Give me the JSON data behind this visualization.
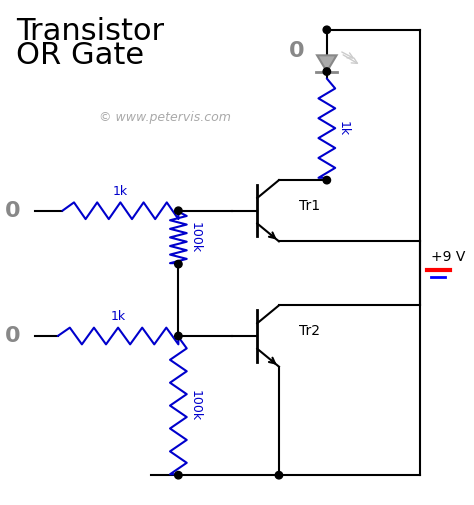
{
  "title_line1": "Transistor",
  "title_line2": "OR Gate",
  "title_color": "#000000",
  "title_fontsize": 22,
  "bg_color": "#ffffff",
  "wire_color": "#000000",
  "resistor_color": "#0000cc",
  "label_color": "#888888",
  "watermark": "© www.petervis.com",
  "watermark_color": "#aaaaaa",
  "watermark_fontsize": 9,
  "voltage_label": "+9 V",
  "output_label": "0",
  "input1_label": "0",
  "input2_label": "0",
  "tr1_label": "Tr1",
  "tr2_label": "Tr2",
  "r1_label": "1k",
  "r2_label": "100k",
  "r3_label": "1k",
  "r4_label": "100k",
  "r5_label": "1k"
}
